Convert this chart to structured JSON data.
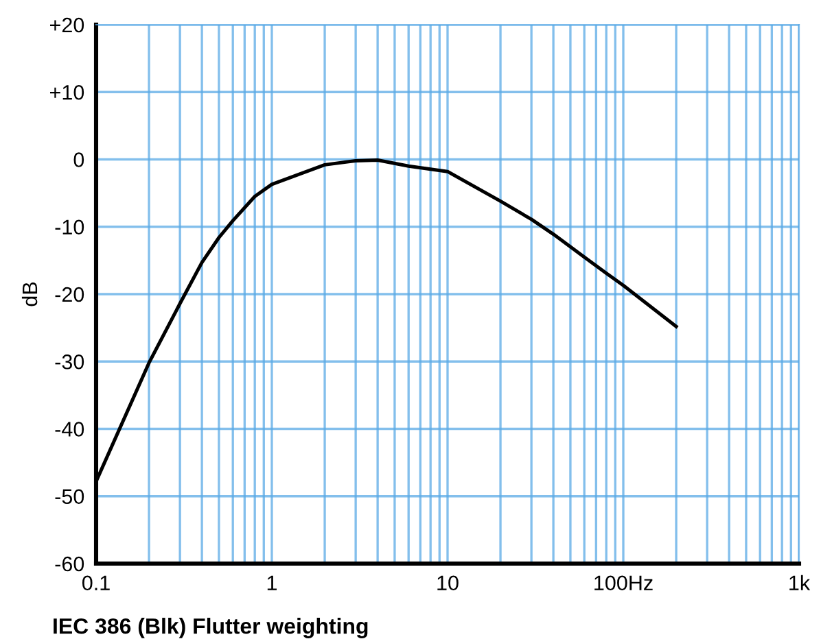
{
  "chart_data": {
    "type": "line",
    "title": "IEC 386 (Blk) Flutter weighting",
    "ylabel": "dB",
    "log": "x",
    "grid": true,
    "marker": "none",
    "line_style": "solid",
    "series": [
      {
        "color": "#000000",
        "x": [
          0.1,
          0.2,
          0.3,
          0.4,
          0.5,
          0.6,
          0.8,
          1,
          2,
          3,
          4,
          6,
          10,
          20,
          30,
          40,
          60,
          80,
          100,
          200
        ],
        "values": [
          -47.8,
          -30.2,
          -21.4,
          -15.3,
          -11.6,
          -9.1,
          -5.5,
          -3.7,
          -0.8,
          -0.2,
          -0.1,
          -1.0,
          -1.8,
          -6.2,
          -8.9,
          -11.1,
          -14.5,
          -16.9,
          -18.7,
          -24.8
        ]
      }
    ],
    "xlim": [
      0.1,
      1000
    ],
    "ylim": [
      -60,
      20
    ],
    "xticks": [
      0.1,
      {
        "value": 0.2,
        "label": null
      },
      {
        "value": 0.3,
        "label": null
      },
      {
        "value": 0.4,
        "label": null
      },
      {
        "value": 0.5,
        "label": null
      },
      {
        "value": 0.6,
        "label": null
      },
      {
        "value": 0.7,
        "label": null
      },
      {
        "value": 0.8,
        "label": null
      },
      {
        "value": 0.9,
        "label": null
      },
      1,
      {
        "value": 2,
        "label": null
      },
      {
        "value": 3,
        "label": null
      },
      {
        "value": 4,
        "label": null
      },
      {
        "value": 5,
        "label": null
      },
      {
        "value": 6,
        "label": null
      },
      {
        "value": 7,
        "label": null
      },
      {
        "value": 8,
        "label": null
      },
      {
        "value": 9,
        "label": null
      },
      10,
      {
        "value": 20,
        "label": null
      },
      {
        "value": 30,
        "label": null
      },
      {
        "value": 40,
        "label": null
      },
      {
        "value": 50,
        "label": null
      },
      {
        "value": 60,
        "label": null
      },
      {
        "value": 70,
        "label": null
      },
      {
        "value": 80,
        "label": null
      },
      {
        "value": 90,
        "label": null
      },
      {
        "value": 100,
        "label": "100Hz"
      },
      {
        "value": 200,
        "label": null
      },
      {
        "value": 300,
        "label": null
      },
      {
        "value": 400,
        "label": null
      },
      {
        "value": 500,
        "label": null
      },
      {
        "value": 600,
        "label": null
      },
      {
        "value": 700,
        "label": null
      },
      {
        "value": 800,
        "label": null
      },
      {
        "value": 900,
        "label": null
      },
      {
        "value": 1000,
        "label": "1k"
      }
    ],
    "yticks": [
      {
        "value": 20,
        "label": "+20"
      },
      {
        "value": 10,
        "label": "+10"
      },
      0,
      {
        "value": -10,
        "label": "-10"
      },
      {
        "value": -20,
        "label": "-20"
      },
      {
        "value": -30,
        "label": "-30"
      },
      {
        "value": -40,
        "label": "-40"
      },
      {
        "value": -50,
        "label": "-50"
      },
      {
        "value": -60,
        "label": "-60"
      }
    ]
  }
}
